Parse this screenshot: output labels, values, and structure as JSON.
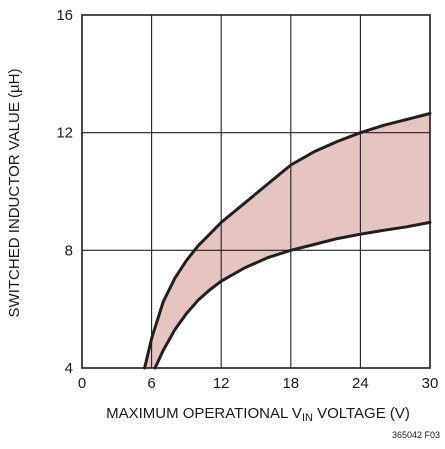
{
  "chart_data": {
    "type": "area",
    "title": "",
    "xlabel_parts": {
      "before": "MAXIMUM OPERATIONAL V",
      "subscript": "IN",
      "after": " VOLTAGE (V)"
    },
    "ylabel": "SWITCHED INDUCTOR VALUE (µH)",
    "xlim": [
      0,
      30
    ],
    "ylim": [
      4,
      16
    ],
    "xticks": [
      "0",
      "6",
      "12",
      "18",
      "24",
      "30"
    ],
    "xtick_values": [
      0,
      6,
      12,
      18,
      24,
      30
    ],
    "yticks": [
      "4",
      "8",
      "12",
      "16"
    ],
    "ytick_values": [
      4,
      8,
      12,
      16
    ],
    "grid": true,
    "fill_color": "#e6c4c0",
    "line_color": "#231f20",
    "series": [
      {
        "x": [
          5.4,
          6,
          7,
          8,
          9,
          10,
          12,
          14,
          16,
          18,
          20,
          22,
          24,
          26,
          28,
          30
        ],
        "y": [
          4.0,
          5.0,
          6.25,
          7.05,
          7.65,
          8.15,
          8.95,
          9.6,
          10.25,
          10.9,
          11.35,
          11.7,
          12.0,
          12.25,
          12.45,
          12.65
        ]
      },
      {
        "x": [
          6.3,
          7,
          8,
          9,
          10,
          11,
          12,
          14,
          16,
          18,
          20,
          22,
          24,
          26,
          28,
          30
        ],
        "y": [
          4.0,
          4.6,
          5.3,
          5.85,
          6.3,
          6.65,
          6.95,
          7.4,
          7.75,
          8.0,
          8.2,
          8.4,
          8.55,
          8.68,
          8.8,
          8.95
        ]
      }
    ],
    "figure_code": "365042 F03"
  }
}
